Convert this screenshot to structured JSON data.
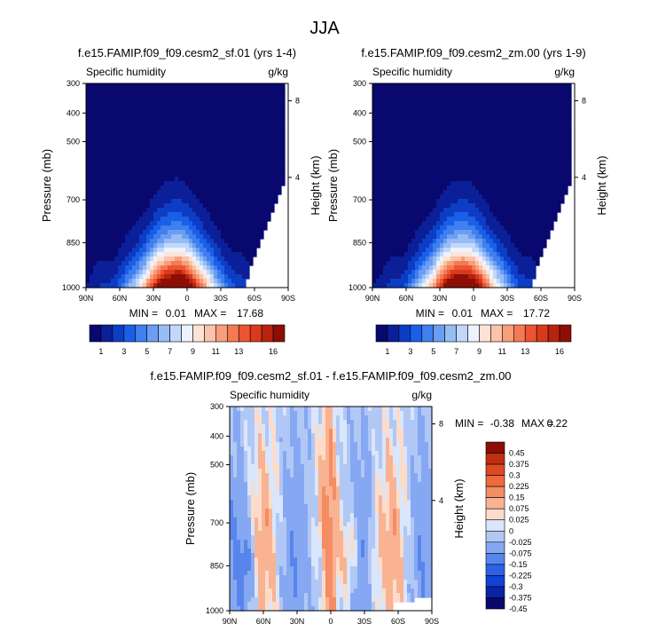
{
  "figure": {
    "title": "JJA"
  },
  "colors": {
    "abs": [
      "#08086e",
      "#0a1f98",
      "#0d3dc4",
      "#1a5fe8",
      "#3f7fee",
      "#6b9ef3",
      "#97bcf6",
      "#c2d8fa",
      "#ecf3fd",
      "#fde3d6",
      "#fbc3a9",
      "#f89e7d",
      "#f47a53",
      "#ee5430",
      "#d93a1c",
      "#b8230f",
      "#8d0e05"
    ],
    "diff": [
      "#08086e",
      "#0a22a6",
      "#1142d6",
      "#2d62e6",
      "#5885ec",
      "#86a8f2",
      "#b1c8f6",
      "#d9e6fb",
      "#fcdcc9",
      "#f9b393",
      "#f48d63",
      "#ee6a3d",
      "#dd4a22",
      "#c02e12",
      "#8d0e05"
    ]
  },
  "chart_data": [
    {
      "type": "contour",
      "title": "f.e15.FAMIP.f09_f09.cesm2_sf.01 (yrs 1-4)",
      "left_label": "Specific humidity",
      "right_label": "g/kg",
      "ylabel": "Pressure (mb)",
      "y2label": "Height (km)",
      "x_ticks": [
        "90N",
        "60N",
        "30N",
        "0",
        "30S",
        "60S",
        "90S"
      ],
      "y_ticks": [
        "300",
        "400",
        "500",
        "700",
        "850",
        "1000"
      ],
      "y2_ticks": [
        "8",
        "4"
      ],
      "stats": {
        "min_label": "MIN =",
        "min": "0.01",
        "max_label": "MAX =",
        "max": "17.68"
      },
      "min": 0.01,
      "max": 17.68,
      "colorbar_labels": [
        "1",
        "3",
        "5",
        "7",
        "9",
        "11",
        "13",
        "16"
      ]
    },
    {
      "type": "contour",
      "title": "f.e15.FAMIP.f09_f09.cesm2_zm.00 (yrs 1-9)",
      "left_label": "Specific humidity",
      "right_label": "g/kg",
      "ylabel": "Pressure (mb)",
      "y2label": "Height (km)",
      "x_ticks": [
        "90N",
        "60N",
        "30N",
        "0",
        "30S",
        "60S",
        "90S"
      ],
      "y_ticks": [
        "300",
        "400",
        "500",
        "700",
        "850",
        "1000"
      ],
      "y2_ticks": [
        "8",
        "4"
      ],
      "stats": {
        "min_label": "MIN =",
        "min": "0.01",
        "max_label": "MAX =",
        "max": "17.72"
      },
      "min": 0.01,
      "max": 17.72,
      "colorbar_labels": [
        "1",
        "3",
        "5",
        "7",
        "9",
        "11",
        "13",
        "16"
      ]
    },
    {
      "type": "contour",
      "title": "f.e15.FAMIP.f09_f09.cesm2_sf.01 - f.e15.FAMIP.f09_f09.cesm2_zm.00",
      "left_label": "Specific humidity",
      "right_label": "g/kg",
      "ylabel": "Pressure (mb)",
      "y2label": "Height (km)",
      "x_ticks": [
        "90N",
        "60N",
        "30N",
        "0",
        "30S",
        "60S",
        "90S"
      ],
      "y_ticks": [
        "300",
        "400",
        "500",
        "700",
        "850",
        "1000"
      ],
      "y2_ticks": [
        "8",
        "4"
      ],
      "stats": {
        "min_label": "MIN =",
        "min": "-0.38",
        "max_label": "MAX =",
        "max": "0.22"
      },
      "min": -0.38,
      "max": 0.22,
      "colorbar_labels": [
        "0.45",
        "0.375",
        "0.3",
        "0.225",
        "0.15",
        "0.075",
        "0.025",
        "0",
        "-0.025",
        "-0.075",
        "-0.15",
        "-0.225",
        "-0.3",
        "-0.375",
        "-0.45"
      ]
    }
  ]
}
